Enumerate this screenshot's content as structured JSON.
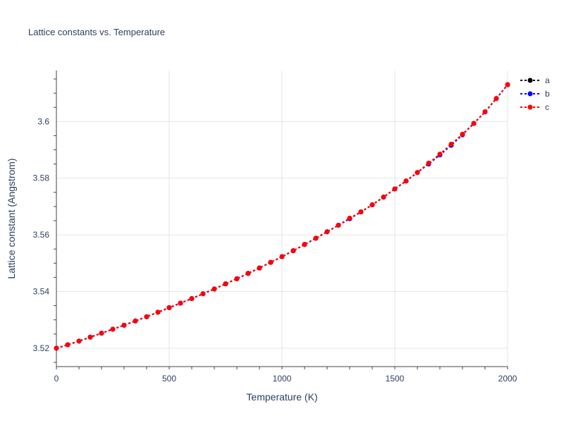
{
  "chart_data": {
    "type": "line",
    "title": "Lattice constants vs. Temperature",
    "xlabel": "Temperature (K)",
    "ylabel": "Lattice constant (Angstrom)",
    "xlim": [
      0,
      2000
    ],
    "ylim": [
      3.5135,
      3.618
    ],
    "x_ticks": [
      "0",
      "500",
      "1000",
      "1500",
      "2000"
    ],
    "y_ticks": [
      "3.52",
      "3.54",
      "3.56",
      "3.58",
      "3.6"
    ],
    "grid": true,
    "legend_position": "top-right",
    "x": [
      0,
      50,
      100,
      150,
      200,
      250,
      300,
      350,
      400,
      450,
      500,
      550,
      600,
      650,
      700,
      750,
      800,
      850,
      900,
      950,
      1000,
      1050,
      1100,
      1150,
      1200,
      1250,
      1300,
      1350,
      1400,
      1450,
      1500,
      1550,
      1600,
      1650,
      1700,
      1750,
      1800,
      1850,
      1900,
      1950,
      2000
    ],
    "series": [
      {
        "name": "a",
        "color": "#000000",
        "values": [
          3.52,
          3.5212,
          3.5225,
          3.5239,
          3.5253,
          3.5267,
          3.5281,
          3.5296,
          3.5311,
          3.5327,
          3.5343,
          3.5359,
          3.5375,
          3.5392,
          3.5409,
          3.5427,
          3.5445,
          3.5464,
          3.5483,
          3.5503,
          3.5523,
          3.5544,
          3.5566,
          3.5588,
          3.5611,
          3.5634,
          3.5657,
          3.5681,
          3.5706,
          3.5733,
          3.5762,
          3.579,
          3.582,
          3.5852,
          3.5884,
          3.5918,
          3.5955,
          3.5993,
          3.6034,
          3.6081,
          3.613
        ]
      },
      {
        "name": "b",
        "color": "#0000ff",
        "values": [
          3.52,
          3.5212,
          3.5225,
          3.5239,
          3.5253,
          3.5267,
          3.5281,
          3.5296,
          3.5311,
          3.5327,
          3.5343,
          3.5359,
          3.5375,
          3.5392,
          3.5409,
          3.5427,
          3.5445,
          3.5464,
          3.5483,
          3.5503,
          3.5523,
          3.5544,
          3.5566,
          3.5588,
          3.5611,
          3.5634,
          3.5657,
          3.5681,
          3.5706,
          3.5733,
          3.5762,
          3.579,
          3.582,
          3.585,
          3.5882,
          3.5916,
          3.5953,
          3.5993,
          3.6034,
          3.6081,
          3.613
        ]
      },
      {
        "name": "c",
        "color": "#ff0000",
        "values": [
          3.52,
          3.5212,
          3.5225,
          3.5239,
          3.5253,
          3.5267,
          3.5281,
          3.5296,
          3.5311,
          3.5327,
          3.5343,
          3.5359,
          3.5375,
          3.5392,
          3.5409,
          3.5427,
          3.5445,
          3.5464,
          3.5483,
          3.5503,
          3.5523,
          3.5544,
          3.5566,
          3.5588,
          3.5611,
          3.5634,
          3.5659,
          3.5681,
          3.5706,
          3.5733,
          3.5762,
          3.579,
          3.582,
          3.5853,
          3.5885,
          3.592,
          3.5955,
          3.5993,
          3.6034,
          3.6081,
          3.613
        ]
      }
    ]
  }
}
